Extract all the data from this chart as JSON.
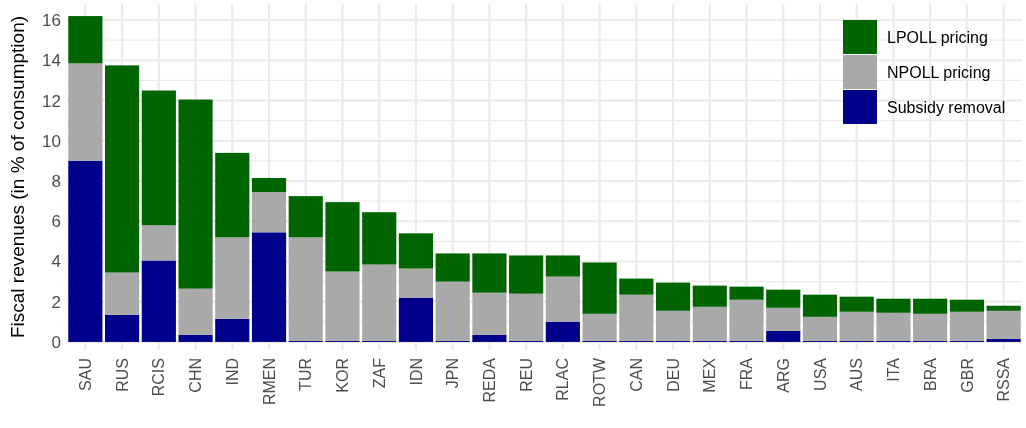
{
  "chart_data": {
    "type": "bar",
    "stacked": true,
    "ylabel": "Fiscal revenues (in % of consumption)",
    "categories": [
      "SAU",
      "RUS",
      "RCIS",
      "CHN",
      "IND",
      "RMEN",
      "TUR",
      "KOR",
      "ZAF",
      "IDN",
      "JPN",
      "REDA",
      "REU",
      "RLAC",
      "ROTW",
      "CAN",
      "DEU",
      "MEX",
      "FRA",
      "ARG",
      "USA",
      "AUS",
      "ITA",
      "BRA",
      "GBR",
      "RSSA"
    ],
    "series": [
      {
        "name": "Subsidy removal",
        "color": "#00008b",
        "values": [
          9.0,
          1.35,
          4.05,
          0.35,
          1.15,
          5.45,
          0.05,
          0.05,
          0.05,
          2.2,
          0.05,
          0.35,
          0.05,
          1.0,
          0.05,
          0.05,
          0.05,
          0.05,
          0.05,
          0.55,
          0.05,
          0.05,
          0.05,
          0.05,
          0.05,
          0.15
        ]
      },
      {
        "name": "NPOLL pricing",
        "color": "#a9a9a9",
        "values": [
          4.85,
          2.1,
          1.75,
          2.3,
          4.05,
          2.0,
          5.15,
          3.45,
          3.8,
          1.45,
          2.95,
          2.1,
          2.35,
          2.25,
          1.35,
          2.3,
          1.5,
          1.7,
          2.05,
          1.15,
          1.2,
          1.45,
          1.4,
          1.35,
          1.45,
          1.4
        ]
      },
      {
        "name": "LPOLL pricing",
        "color": "#006400",
        "values": [
          2.35,
          10.3,
          6.7,
          9.4,
          4.2,
          0.7,
          2.05,
          3.45,
          2.6,
          1.75,
          1.4,
          1.95,
          1.9,
          1.05,
          2.55,
          0.8,
          1.4,
          1.05,
          0.65,
          0.9,
          1.1,
          0.75,
          0.7,
          0.75,
          0.6,
          0.25
        ]
      }
    ],
    "ylim": [
      -0.4,
      16.8
    ],
    "yticks": [
      0,
      {
        "value": 1,
        "label": null
      },
      2,
      {
        "value": 3,
        "label": null
      },
      4,
      {
        "value": 5,
        "label": null
      },
      6,
      {
        "value": 7,
        "label": null
      },
      8,
      {
        "value": 9,
        "label": null
      },
      10,
      {
        "value": 11,
        "label": null
      },
      12,
      {
        "value": 13,
        "label": null
      },
      14,
      {
        "value": 15,
        "label": null
      },
      16
    ],
    "grid": true,
    "legend": "top right"
  }
}
